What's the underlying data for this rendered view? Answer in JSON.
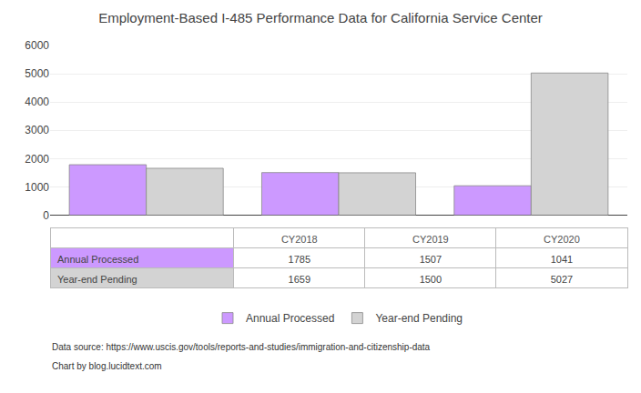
{
  "chart_data": {
    "type": "bar",
    "title": "Employment-Based I-485 Performance Data for California Service Center",
    "categories": [
      "CY2018",
      "CY2019",
      "CY2020"
    ],
    "series": [
      {
        "name": "Annual Processed",
        "color": "#cc99ff",
        "values": [
          1785,
          1507,
          1041
        ]
      },
      {
        "name": "Year-end Pending",
        "color": "#d3d3d3",
        "values": [
          1659,
          1500,
          5027
        ]
      }
    ],
    "ylim": [
      0,
      6000
    ],
    "yticks": [
      0,
      1000,
      2000,
      3000,
      4000,
      5000,
      6000
    ],
    "grid": true,
    "legend": "bottom",
    "tick_labels": "y",
    "annotations": [
      "Data source: https://www.uscis.gov/tools/reports-and-studies/immigration-and-citizenship-data",
      "Chart by blog.lucidtext.com"
    ]
  }
}
